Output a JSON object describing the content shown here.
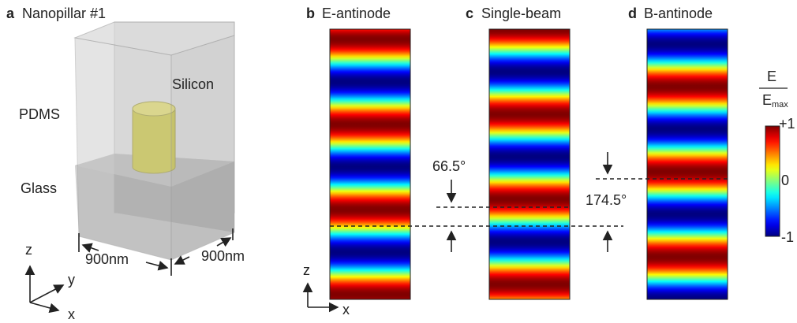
{
  "panel_a": {
    "letter": "a",
    "title": "Nanopillar #1",
    "labels": {
      "silicon": "Silicon",
      "pdms": "PDMS",
      "glass": "Glass"
    },
    "dimensions": [
      "900nm",
      "900nm"
    ],
    "axes": [
      "z",
      "y",
      "x"
    ]
  },
  "panels": [
    {
      "letter": "b",
      "title": "E-antinode"
    },
    {
      "letter": "c",
      "title": "Single-beam"
    },
    {
      "letter": "d",
      "title": "B-antinode"
    }
  ],
  "field_axes": [
    "z",
    "x"
  ],
  "angles": [
    "66.5°",
    "174.5°"
  ],
  "colorbar": {
    "numerator": "E",
    "denominator": "E",
    "subscript": "max",
    "ticks": [
      "+1",
      "0",
      "-1"
    ]
  }
}
